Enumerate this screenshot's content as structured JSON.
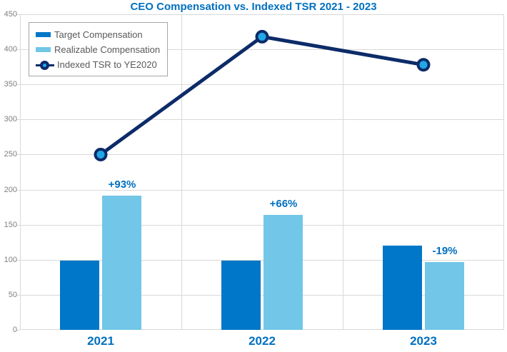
{
  "title": "CEO Compensation vs. Indexed TSR 2021 - 2023",
  "colors": {
    "title_text": "#0070C0",
    "target_bar": "#0077C8",
    "realizable_bar": "#72C6E7",
    "tsr_line": "#0C2B68",
    "tsr_marker_fill": "#21A7E6",
    "axis_text": "#7F7F7F",
    "legend_text": "#595959",
    "legend_border": "#A6A6A6",
    "gridline": "#D9D9D9",
    "category_label_text": "#0070C0",
    "data_label_text": "#0070C0"
  },
  "chart_data": {
    "type": "bar+line",
    "title": "CEO Compensation vs. Indexed TSR 2021 - 2023",
    "categories": [
      "2021",
      "2022",
      "2023"
    ],
    "series": [
      {
        "name": "Target Compensation",
        "type": "bar",
        "color_key": "target_bar",
        "values": [
          99,
          99,
          120
        ]
      },
      {
        "name": "Realizable Compensation",
        "type": "bar",
        "color_key": "realizable_bar",
        "values": [
          191,
          164,
          97
        ],
        "point_labels": [
          "+93%",
          "+66%",
          "-19%"
        ]
      },
      {
        "name": "Indexed TSR to YE2020",
        "type": "line",
        "color_key": "tsr_line",
        "values": [
          250,
          418,
          378
        ]
      }
    ],
    "ylim": [
      0,
      450
    ],
    "ytick_step": 50,
    "ytick_labels": [
      "0",
      "50",
      "100",
      "150",
      "200",
      "250",
      "300",
      "350",
      "400",
      "450"
    ],
    "grid": true,
    "legend_position": "top-left"
  }
}
